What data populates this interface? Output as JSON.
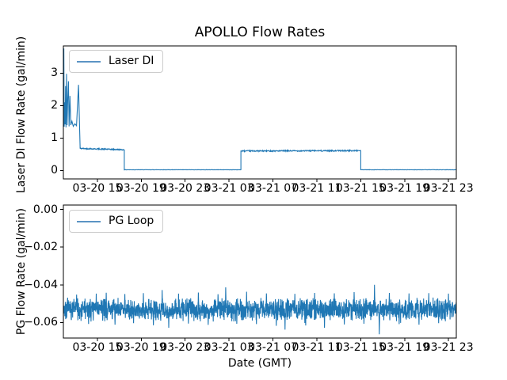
{
  "figure": {
    "background": "#ffffff",
    "accent_line_color": "#1f77b4",
    "text_color": "#000000"
  },
  "chart_data": [
    {
      "type": "line",
      "title": "APOLLO Flow Rates",
      "ylabel": "Laser DI Flow Rate (gal/min)",
      "xlabel": "",
      "legend": {
        "label": "Laser DI",
        "position": "upper left"
      },
      "grid": false,
      "x_unit": "hours since 03-20 00:00 GMT",
      "xlim": [
        11.9,
        47.71
      ],
      "ylim": [
        -0.26,
        3.84
      ],
      "yticks": [
        {
          "value": 0,
          "label": "0"
        },
        {
          "value": 1,
          "label": "1"
        },
        {
          "value": 2,
          "label": "2"
        },
        {
          "value": 3,
          "label": "3"
        }
      ],
      "xticks": [
        {
          "value": 15,
          "label": "03-20 15"
        },
        {
          "value": 19,
          "label": "03-20 19"
        },
        {
          "value": 23,
          "label": "03-20 23"
        },
        {
          "value": 27,
          "label": "03-21 03"
        },
        {
          "value": 31,
          "label": "03-21 07"
        },
        {
          "value": 35,
          "label": "03-21 11"
        },
        {
          "value": 39,
          "label": "03-21 15"
        },
        {
          "value": 43,
          "label": "03-21 19"
        },
        {
          "value": 47,
          "label": "03-21 23"
        }
      ],
      "series": [
        {
          "name": "Laser DI",
          "color": "#1f77b4",
          "seed": 42,
          "spike_points": [
            [
              11.9,
              1.5
            ],
            [
              11.92,
              3.3
            ],
            [
              11.94,
              3.76
            ],
            [
              11.97,
              1.35
            ],
            [
              12.02,
              2.1
            ],
            [
              12.06,
              1.42
            ],
            [
              12.1,
              2.6
            ],
            [
              12.14,
              1.33
            ],
            [
              12.19,
              2.98
            ],
            [
              12.24,
              1.4
            ],
            [
              12.3,
              2.2
            ],
            [
              12.36,
              2.75
            ],
            [
              12.42,
              1.36
            ],
            [
              12.5,
              2.3
            ],
            [
              12.58,
              1.4
            ],
            [
              12.68,
              1.52
            ],
            [
              12.8,
              1.36
            ],
            [
              12.95,
              1.44
            ],
            [
              13.1,
              1.38
            ],
            [
              13.28,
              2.64
            ],
            [
              13.38,
              1.3
            ],
            [
              13.42,
              0.74
            ]
          ],
          "plateaus": [
            {
              "t0": 13.42,
              "t1": 17.45,
              "y0": 0.68,
              "y1": 0.64,
              "noise": 0.018
            },
            {
              "t0": 17.45,
              "t1": 28.08,
              "y0": 0.022,
              "y1": 0.022,
              "noise": 0.004
            },
            {
              "t0": 28.08,
              "t1": 39.0,
              "y0": 0.6,
              "y1": 0.612,
              "noise": 0.018
            },
            {
              "t0": 39.0,
              "t1": 47.71,
              "y0": 0.022,
              "y1": 0.022,
              "noise": 0.004
            }
          ]
        }
      ]
    },
    {
      "type": "line",
      "title": "",
      "ylabel": "PG Flow Rate (gal/min)",
      "xlabel": "Date (GMT)",
      "legend": {
        "label": "PG Loop",
        "position": "upper left"
      },
      "grid": false,
      "x_unit": "hours since 03-20 00:00 GMT",
      "xlim": [
        11.9,
        47.71
      ],
      "ylim": [
        -0.0683,
        0.0024
      ],
      "yticks": [
        {
          "value": 0,
          "label": "0.00"
        },
        {
          "value": -0.02,
          "label": "−0.02"
        },
        {
          "value": -0.04,
          "label": "−0.04"
        },
        {
          "value": -0.06,
          "label": "−0.06"
        }
      ],
      "xticks": [
        {
          "value": 15,
          "label": "03-20 15"
        },
        {
          "value": 19,
          "label": "03-20 19"
        },
        {
          "value": 23,
          "label": "03-20 23"
        },
        {
          "value": 27,
          "label": "03-21 03"
        },
        {
          "value": 31,
          "label": "03-21 07"
        },
        {
          "value": 35,
          "label": "03-21 11"
        },
        {
          "value": 39,
          "label": "03-21 15"
        },
        {
          "value": 43,
          "label": "03-21 19"
        },
        {
          "value": 47,
          "label": "03-21 23"
        }
      ],
      "series": [
        {
          "name": "PG Loop",
          "color": "#1f77b4",
          "seed": 7,
          "noise_series": {
            "mean": -0.053,
            "amp": 0.0033,
            "points": 2200
          },
          "spikes": [
            [
              13.1,
              -0.0452
            ],
            [
              14.2,
              -0.0608
            ],
            [
              14.9,
              -0.0447
            ],
            [
              15.8,
              -0.0442
            ],
            [
              16.6,
              -0.0612
            ],
            [
              17.5,
              -0.0449
            ],
            [
              18.3,
              -0.0604
            ],
            [
              19.2,
              -0.0444
            ],
            [
              20.1,
              -0.0615
            ],
            [
              20.9,
              -0.0428
            ],
            [
              21.5,
              -0.0628
            ],
            [
              22.4,
              -0.0447
            ],
            [
              23.3,
              -0.0606
            ],
            [
              24.2,
              -0.0441
            ],
            [
              25.1,
              -0.0613
            ],
            [
              26.0,
              -0.045
            ],
            [
              26.7,
              -0.0413
            ],
            [
              27.7,
              -0.0607
            ],
            [
              28.6,
              -0.0437
            ],
            [
              29.5,
              -0.0609
            ],
            [
              30.4,
              -0.0446
            ],
            [
              31.3,
              -0.0618
            ],
            [
              32.1,
              -0.0638
            ],
            [
              33.0,
              -0.0448
            ],
            [
              33.9,
              -0.0603
            ],
            [
              34.8,
              -0.0443
            ],
            [
              35.7,
              -0.0629
            ],
            [
              36.6,
              -0.0445
            ],
            [
              37.5,
              -0.0611
            ],
            [
              38.4,
              -0.0439
            ],
            [
              39.3,
              -0.0607
            ],
            [
              40.25,
              -0.04
            ],
            [
              40.7,
              -0.0663
            ],
            [
              41.6,
              -0.0443
            ],
            [
              42.5,
              -0.0609
            ],
            [
              43.4,
              -0.0446
            ],
            [
              44.3,
              -0.0612
            ],
            [
              45.2,
              -0.0444
            ],
            [
              46.1,
              -0.0604
            ],
            [
              47.0,
              -0.0447
            ]
          ]
        }
      ]
    }
  ]
}
